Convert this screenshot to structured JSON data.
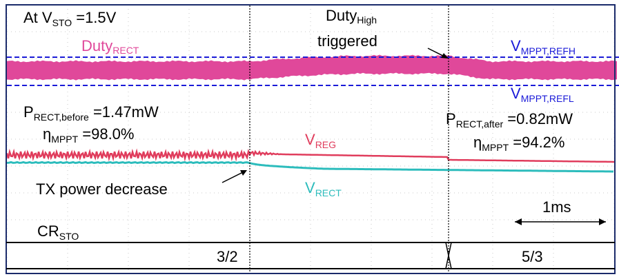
{
  "header": {
    "condition": {
      "main": "At V",
      "sub": "STO",
      "tail": " =1.5V"
    }
  },
  "labels": {
    "duty_rect": {
      "main": "Duty",
      "sub": "RECT"
    },
    "duty_high": {
      "main": "Duty",
      "sub": "High"
    },
    "triggered": "triggered",
    "vmppt_refh": {
      "main": "V",
      "sub": "MPPT,REFH"
    },
    "vmppt_refl": {
      "main": "V",
      "sub": "MPPT,REFL"
    },
    "prect_before": {
      "main": "P",
      "sub": "RECT,before",
      "tail": " =1.47mW"
    },
    "eta_before": {
      "main": "η",
      "sub": "MPPT",
      "tail": " =98.0%"
    },
    "prect_after": {
      "main": "P",
      "sub": "RECT,after",
      "tail": " =0.82mW"
    },
    "eta_after": {
      "main": "η",
      "sub": "MPPT",
      "tail": " =94.2%"
    },
    "vreg": {
      "main": "V",
      "sub": "REG"
    },
    "vrect": {
      "main": "V",
      "sub": "RECT"
    },
    "tx_decrease": "TX power decrease",
    "timescale": "1ms",
    "cr_sto": {
      "main": "CR",
      "sub": "STO"
    },
    "cr_before": "3/2",
    "cr_after": "5/3"
  },
  "colors": {
    "duty": "#e0489a",
    "vreg": "#e03c5c",
    "vrect": "#2cbcbc",
    "ref": "#1a1ad8",
    "frame": "#1a2a6a",
    "text": "#000000"
  },
  "chart_data": {
    "type": "line",
    "scale": "1ms per division",
    "events": [
      "TX power decrease",
      "Duty High triggered"
    ],
    "traces": [
      {
        "name": "Duty RECT",
        "level": "wide PWM band, rises between events, returns after trigger"
      },
      {
        "name": "V REG",
        "level_before": "ripple",
        "level_after": "settles lower"
      },
      {
        "name": "V RECT",
        "level_before": "flat",
        "level_after": "decreases"
      }
    ],
    "bus": {
      "name": "CR STO",
      "values": [
        "3/2",
        "5/3"
      ]
    }
  }
}
